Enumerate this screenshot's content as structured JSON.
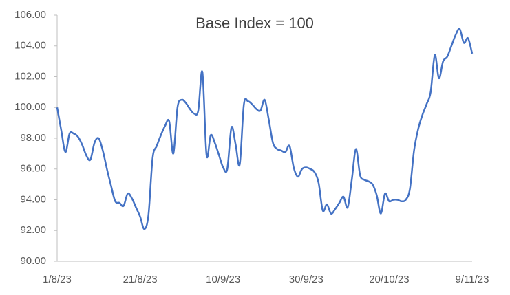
{
  "chart_data": {
    "type": "line",
    "title": "Base Index = 100",
    "categories": [
      "1/8/23",
      null,
      null,
      null,
      null,
      null,
      null,
      null,
      null,
      null,
      null,
      null,
      null,
      null,
      null,
      null,
      null,
      null,
      null,
      null,
      "21/8/23",
      null,
      null,
      null,
      null,
      null,
      null,
      null,
      null,
      null,
      null,
      null,
      null,
      null,
      null,
      null,
      null,
      null,
      null,
      null,
      "10/9/23",
      null,
      null,
      null,
      null,
      null,
      null,
      null,
      null,
      null,
      null,
      null,
      null,
      null,
      null,
      null,
      null,
      null,
      null,
      null,
      "30/9/23",
      null,
      null,
      null,
      null,
      null,
      null,
      null,
      null,
      null,
      null,
      null,
      null,
      null,
      null,
      null,
      null,
      null,
      null,
      null,
      "20/10/23",
      null,
      null,
      null,
      null,
      null,
      null,
      null,
      null,
      null,
      null,
      null,
      null,
      null,
      null,
      null,
      null,
      null,
      null,
      null,
      "9/11/23"
    ],
    "series": [
      {
        "color": "#4472c4",
        "values": [
          100.0,
          98.5,
          97.1,
          98.3,
          98.3,
          98.1,
          97.6,
          96.9,
          96.6,
          97.7,
          98.0,
          97.2,
          96.0,
          94.9,
          93.9,
          93.8,
          93.6,
          94.4,
          94.1,
          93.5,
          92.9,
          92.1,
          93.0,
          96.7,
          97.5,
          98.2,
          98.8,
          99.1,
          97.0,
          100.0,
          100.5,
          100.3,
          99.9,
          99.6,
          99.8,
          102.3,
          96.9,
          98.2,
          97.7,
          96.9,
          96.1,
          96.0,
          98.7,
          97.6,
          96.3,
          100.2,
          100.4,
          100.2,
          99.9,
          99.8,
          100.5,
          99.2,
          97.7,
          97.3,
          97.2,
          97.1,
          97.5,
          96.1,
          95.5,
          96.0,
          96.1,
          96.0,
          95.8,
          95.1,
          93.3,
          93.7,
          93.1,
          93.4,
          93.8,
          94.2,
          93.5,
          95.3,
          97.3,
          95.6,
          95.3,
          95.2,
          95.0,
          94.3,
          93.1,
          94.4,
          93.9,
          94.0,
          94.0,
          93.9,
          94.0,
          94.7,
          97.2,
          98.6,
          99.5,
          100.2,
          101.0,
          103.4,
          101.9,
          103.0,
          103.3,
          104.0,
          104.7,
          105.1,
          104.2,
          104.5,
          103.5
        ]
      }
    ],
    "ylim": [
      90,
      106
    ],
    "yticks": [
      {
        "value": 90,
        "label": "90.00"
      },
      {
        "value": 92,
        "label": "92.00"
      },
      {
        "value": 94,
        "label": "94.00"
      },
      {
        "value": 96,
        "label": "96.00"
      },
      {
        "value": 98,
        "label": "98.00"
      },
      {
        "value": 100,
        "label": "100.00"
      },
      {
        "value": 102,
        "label": "102.00"
      },
      {
        "value": 104,
        "label": "104.00"
      },
      {
        "value": 106,
        "label": "106.00"
      }
    ],
    "grid": false
  }
}
